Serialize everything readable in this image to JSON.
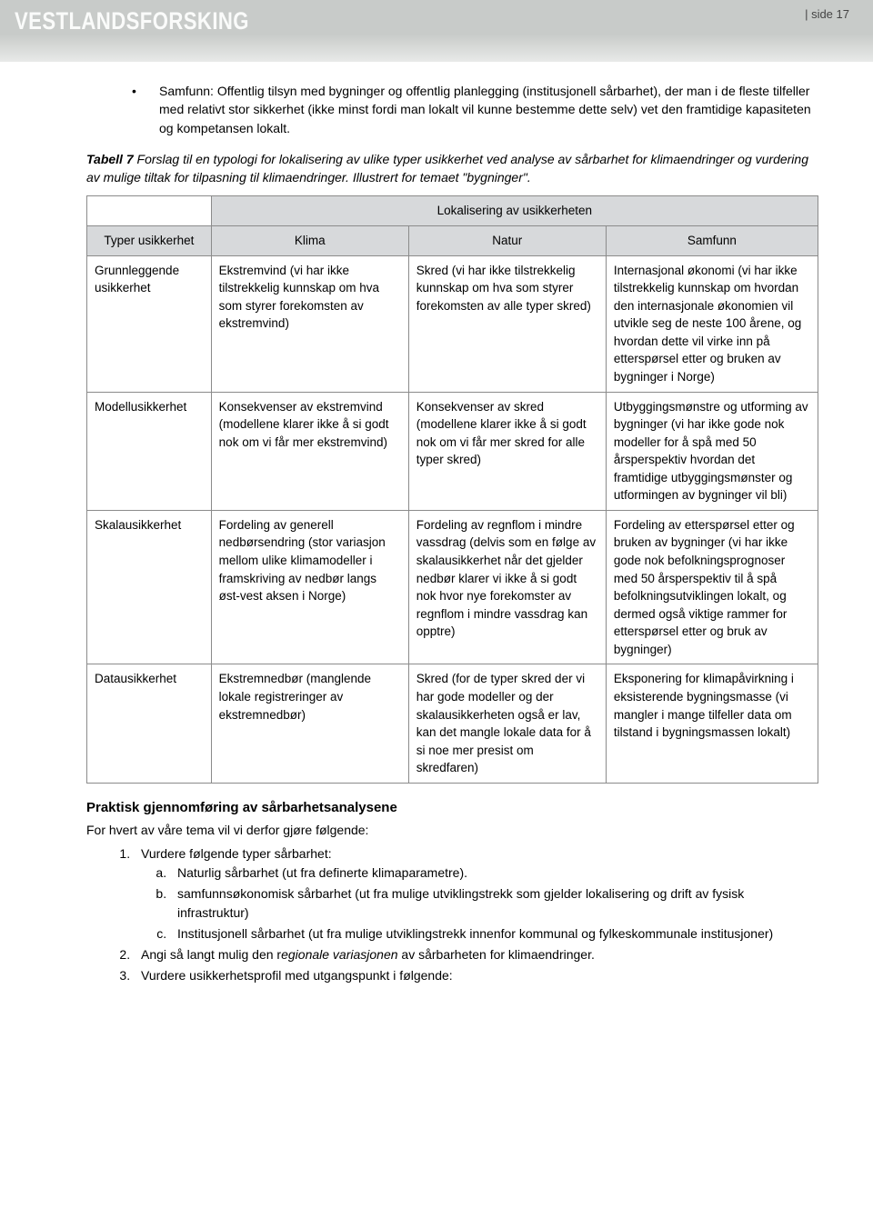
{
  "header": {
    "logo": "VESTLANDSFORSKING",
    "page_label": "|   side 17"
  },
  "bullet": {
    "text": "Samfunn: Offentlig tilsyn med bygninger og offentlig planlegging (institusjonell sårbarhet), der man i de fleste tilfeller med relativt stor sikkerhet (ikke minst fordi man lokalt vil kunne bestemme dette selv) vet den framtidige kapasiteten og kompetansen lokalt."
  },
  "caption": {
    "bold": "Tabell 7",
    "rest": " Forslag til en typologi for lokalisering av ulike typer usikkerhet ved analyse av sårbarhet for klimaendringer og vurdering av mulige tiltak for tilpasning til klimaendringer. Illustrert for temaet \"bygninger\"."
  },
  "table": {
    "lok_header": "Lokalisering av usikkerheten",
    "headers": {
      "type": "Typer usikkerhet",
      "klima": "Klima",
      "natur": "Natur",
      "samfunn": "Samfunn"
    },
    "rows": [
      {
        "type": "Grunnleggende usikkerhet",
        "klima": "Ekstremvind (vi har ikke tilstrekkelig kunnskap om hva som styrer forekomsten av ekstremvind)",
        "natur": "Skred (vi har ikke tilstrekkelig kunnskap om hva som styrer forekomsten av alle typer skred)",
        "samfunn": "Internasjonal økonomi (vi har ikke tilstrekkelig kunnskap om hvordan den internasjonale økonomien vil utvikle seg de neste 100 årene, og hvordan dette vil virke inn på etterspørsel etter og bruken av bygninger i Norge)"
      },
      {
        "type": "Modellusikkerhet",
        "klima": "Konsekvenser av ekstremvind (modellene klarer ikke å si godt nok om vi får mer ekstremvind)",
        "natur": "Konsekvenser av skred (modellene klarer ikke å si godt nok om vi får mer skred for alle typer skred)",
        "samfunn": "Utbyggingsmønstre og utforming av bygninger (vi har ikke gode nok modeller for å spå med 50 årsperspektiv hvordan det framtidige utbyggingsmønster og utformingen av bygninger vil bli)"
      },
      {
        "type": "Skalausikkerhet",
        "klima": "Fordeling av generell nedbørsendring (stor variasjon mellom ulike klimamodeller i framskriving av nedbør langs øst-vest aksen i Norge)",
        "natur": "Fordeling av regnflom i mindre vassdrag (delvis som en følge av skalausikkerhet når det gjelder nedbør klarer vi ikke å si godt nok hvor nye forekomster av regnflom i mindre vassdrag kan opptre)",
        "samfunn": "Fordeling av etterspørsel etter og bruken av bygninger (vi har ikke gode nok befolkningsprognoser med 50 årsperspektiv til å spå befolkningsutviklingen lokalt, og dermed også viktige rammer for etterspørsel etter og bruk av bygninger)"
      },
      {
        "type": "Datausikkerhet",
        "klima": "Ekstremnedbør (manglende lokale registreringer av ekstremnedbør)",
        "natur": "Skred (for de typer skred der vi har gode modeller og der skalausikkerheten også er lav, kan det mangle lokale data for å si noe mer presist om skredfaren)",
        "samfunn": "Eksponering for klimapåvirkning i eksisterende bygningsmasse (vi mangler i mange tilfeller data om tilstand i bygningsmassen lokalt)"
      }
    ]
  },
  "section": {
    "title": "Praktisk gjennomføring av sårbarhetsanalysene",
    "intro": "For hvert av våre tema vil vi derfor gjøre følgende:",
    "list": [
      {
        "text": "Vurdere følgende typer sårbarhet:",
        "sub": [
          "Naturlig sårbarhet (ut fra definerte klimaparametre).",
          "samfunnsøkonomisk sårbarhet (ut fra mulige utviklingstrekk som gjelder lokalisering og drift av fysisk infrastruktur)",
          "Institusjonell sårbarhet (ut fra mulige utviklingstrekk innenfor kommunal og fylkeskommunale institusjoner)"
        ]
      },
      {
        "pre": "Angi så langt mulig den r",
        "italic": "egionale variasjonen",
        "post": " av sårbarheten for klimaendringer."
      },
      {
        "text": "Vurdere usikkerhetsprofil med utgangspunkt i følgende:"
      }
    ]
  }
}
